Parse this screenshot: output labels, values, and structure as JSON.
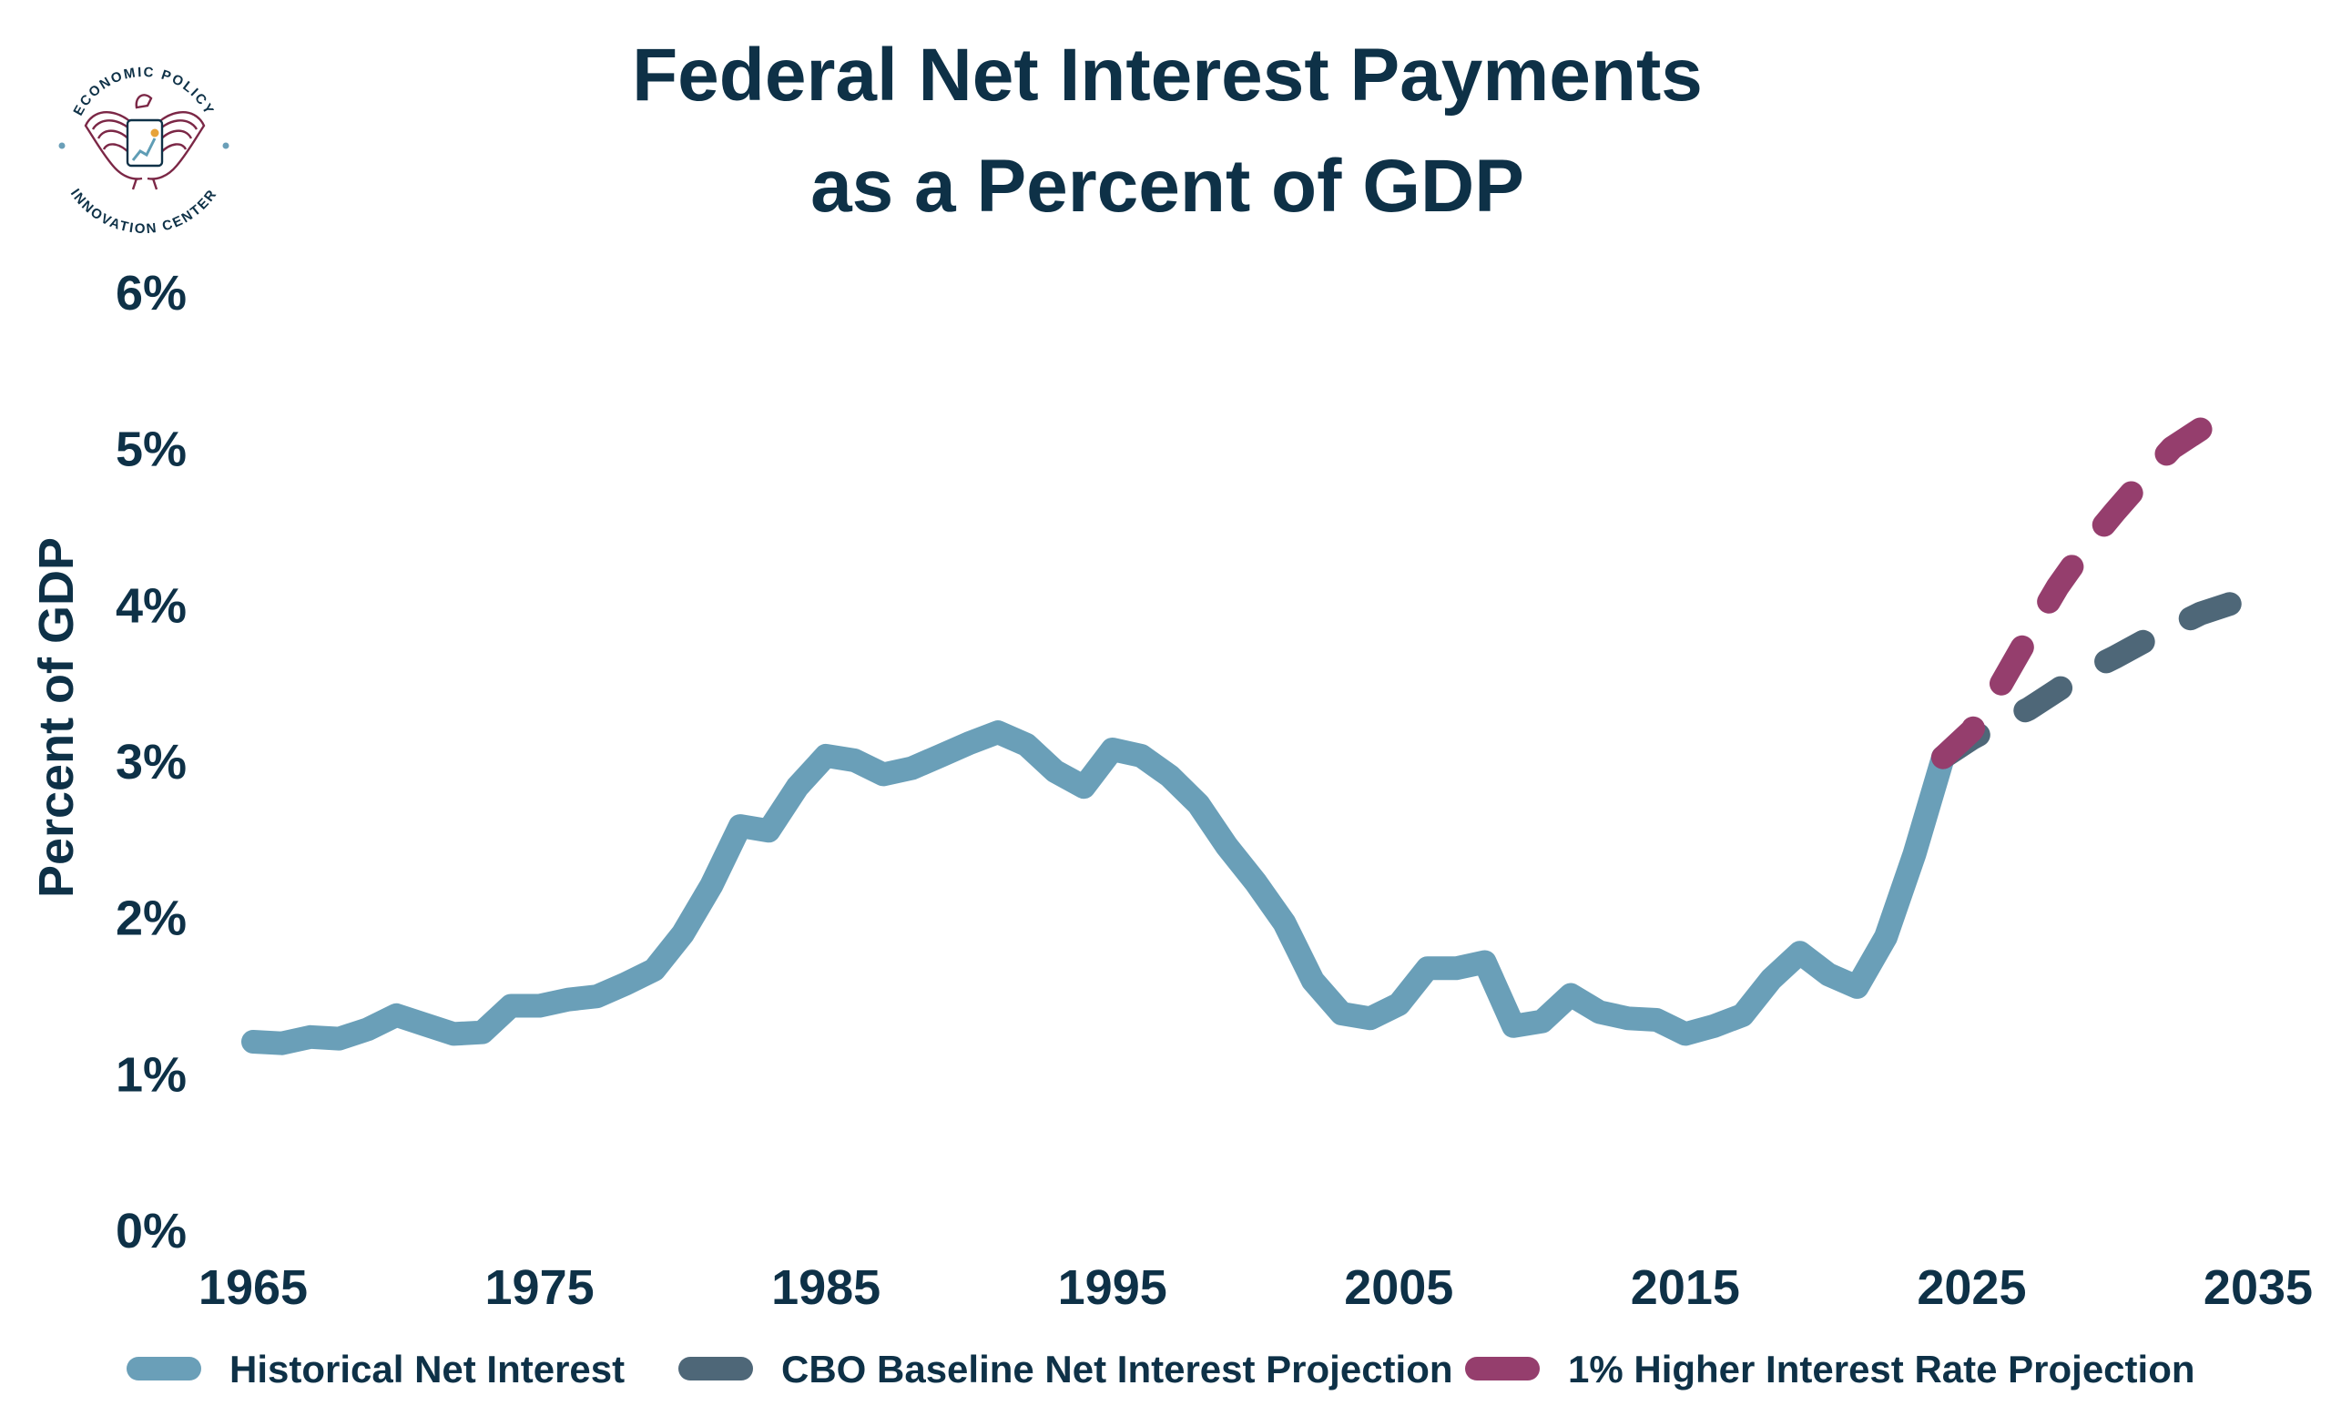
{
  "logo": {
    "top_text": "ECONOMIC POLICY",
    "bottom_text": "INNOVATION CENTER",
    "colors": {
      "maroon": "#7b2746",
      "navy": "#0e3147",
      "teal": "#5f9db5",
      "orange": "#e7a33a"
    }
  },
  "chart_data": {
    "type": "line",
    "title": "Federal Net Interest Payments",
    "subtitle": "as a Percent of GDP",
    "xlabel": "",
    "ylabel": "Percent of GDP",
    "xlim": [
      1965,
      2035
    ],
    "ylim": [
      0,
      6
    ],
    "x_ticks": [
      "1965",
      "1975",
      "1985",
      "1995",
      "2005",
      "2015",
      "2025",
      "2035"
    ],
    "y_ticks": [
      "0%",
      "1%",
      "2%",
      "3%",
      "4%",
      "5%",
      "6%"
    ],
    "grid": false,
    "legend_position": "bottom",
    "series": [
      {
        "name": "Historical Net Interest",
        "color": "#6a9fb8",
        "style": "solid",
        "x": [
          1965,
          1966,
          1967,
          1968,
          1969,
          1970,
          1971,
          1972,
          1973,
          1974,
          1975,
          1976,
          1977,
          1978,
          1979,
          1980,
          1981,
          1982,
          1983,
          1984,
          1985,
          1986,
          1987,
          1988,
          1989,
          1990,
          1991,
          1992,
          1993,
          1994,
          1995,
          1996,
          1997,
          1998,
          1999,
          2000,
          2001,
          2002,
          2003,
          2004,
          2005,
          2006,
          2007,
          2008,
          2009,
          2010,
          2011,
          2012,
          2013,
          2014,
          2015,
          2016,
          2017,
          2018,
          2019,
          2020,
          2021,
          2022,
          2023,
          2024
        ],
        "values": [
          1.2,
          1.19,
          1.23,
          1.22,
          1.28,
          1.37,
          1.31,
          1.25,
          1.26,
          1.43,
          1.43,
          1.47,
          1.49,
          1.57,
          1.66,
          1.89,
          2.2,
          2.58,
          2.55,
          2.83,
          3.03,
          3.0,
          2.91,
          2.95,
          3.03,
          3.11,
          3.18,
          3.1,
          2.93,
          2.83,
          3.07,
          3.03,
          2.9,
          2.72,
          2.45,
          2.22,
          1.96,
          1.59,
          1.38,
          1.35,
          1.44,
          1.67,
          1.67,
          1.71,
          1.3,
          1.33,
          1.5,
          1.39,
          1.35,
          1.34,
          1.25,
          1.3,
          1.37,
          1.6,
          1.77,
          1.63,
          1.55,
          1.87,
          2.4,
          3.02
        ]
      },
      {
        "name": "CBO Baseline Net Interest Projection",
        "color": "#4e6778",
        "style": "dashed",
        "x": [
          2024,
          2025,
          2026,
          2027,
          2028,
          2029,
          2030,
          2031,
          2032,
          2033,
          2034,
          2035
        ],
        "values": [
          3.02,
          3.14,
          3.24,
          3.33,
          3.45,
          3.57,
          3.66,
          3.76,
          3.85,
          3.94,
          4.0,
          4.07
        ]
      },
      {
        "name": "1% Higher Interest Rate Projection",
        "color": "#953e6d",
        "style": "dashed",
        "x": [
          2024,
          2025,
          2026,
          2027,
          2028,
          2029,
          2030,
          2031,
          2032,
          2033,
          2034
        ],
        "values": [
          3.02,
          3.19,
          3.48,
          3.8,
          4.11,
          4.37,
          4.59,
          4.8,
          5.0,
          5.12,
          5.22
        ]
      }
    ]
  }
}
